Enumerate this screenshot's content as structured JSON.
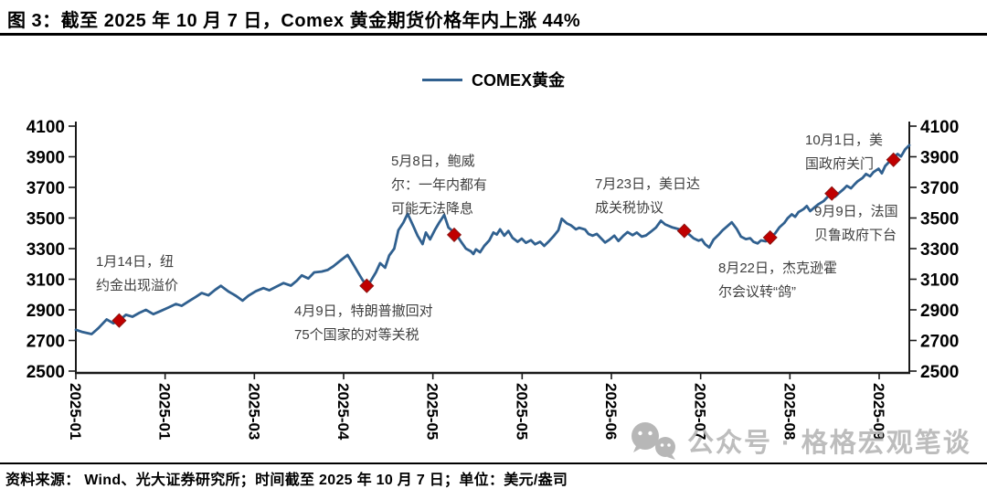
{
  "title": "图 3：截至 2025 年 10 月 7 日，Comex 黄金期货价格年内上涨 44%",
  "legend": {
    "label": "COMEX黄金"
  },
  "footer": {
    "source": "资料来源： Wind、光大证券研究所；时间截至 2025 年 10 月 7 日；单位：美元/盎司"
  },
  "watermark": {
    "text": "公众号 · 格格宏观笔谈"
  },
  "colors": {
    "line": "#30608f",
    "marker": "#c00000",
    "marker_edge": "#8b1512",
    "axis": "#1a1a1a",
    "annotation": "#3f3f3f",
    "watermark": "#b6b6b6"
  },
  "chart_data": {
    "type": "line",
    "title": "COMEX黄金",
    "xlabel": "",
    "ylabel": "美元/盎司",
    "ylim": [
      2500,
      4100
    ],
    "grid": false,
    "legend_position": "top",
    "y_ticks": [
      2500,
      2700,
      2900,
      3100,
      3300,
      3500,
      3700,
      3900,
      4100
    ],
    "x_tick_labels": [
      "2025-01",
      "2025-01",
      "2025-03",
      "2025-04",
      "2025-05",
      "2025-05",
      "2025-06",
      "2025-07",
      "2025-08",
      "2025-09"
    ],
    "series": [
      {
        "name": "COMEX黄金",
        "points": [
          [
            0,
            2770
          ],
          [
            0.008,
            2755
          ],
          [
            0.019,
            2742
          ],
          [
            0.027,
            2780
          ],
          [
            0.037,
            2838
          ],
          [
            0.045,
            2812
          ],
          [
            0.052,
            2830
          ],
          [
            0.06,
            2868
          ],
          [
            0.068,
            2855
          ],
          [
            0.076,
            2880
          ],
          [
            0.084,
            2900
          ],
          [
            0.093,
            2872
          ],
          [
            0.102,
            2893
          ],
          [
            0.111,
            2915
          ],
          [
            0.12,
            2938
          ],
          [
            0.127,
            2926
          ],
          [
            0.136,
            2958
          ],
          [
            0.144,
            2985
          ],
          [
            0.151,
            3010
          ],
          [
            0.159,
            2995
          ],
          [
            0.167,
            3030
          ],
          [
            0.174,
            3057
          ],
          [
            0.183,
            3020
          ],
          [
            0.192,
            2992
          ],
          [
            0.2,
            2960
          ],
          [
            0.207,
            2992
          ],
          [
            0.216,
            3022
          ],
          [
            0.225,
            3042
          ],
          [
            0.232,
            3028
          ],
          [
            0.24,
            3050
          ],
          [
            0.249,
            3075
          ],
          [
            0.258,
            3058
          ],
          [
            0.265,
            3090
          ],
          [
            0.271,
            3125
          ],
          [
            0.279,
            3105
          ],
          [
            0.286,
            3145
          ],
          [
            0.295,
            3150
          ],
          [
            0.302,
            3160
          ],
          [
            0.309,
            3185
          ],
          [
            0.317,
            3220
          ],
          [
            0.326,
            3258
          ],
          [
            0.332,
            3205
          ],
          [
            0.339,
            3140
          ],
          [
            0.344,
            3095
          ],
          [
            0.349,
            3057
          ],
          [
            0.354,
            3090
          ],
          [
            0.36,
            3145
          ],
          [
            0.365,
            3205
          ],
          [
            0.371,
            3175
          ],
          [
            0.376,
            3255
          ],
          [
            0.382,
            3300
          ],
          [
            0.387,
            3420
          ],
          [
            0.393,
            3470
          ],
          [
            0.398,
            3528
          ],
          [
            0.405,
            3445
          ],
          [
            0.41,
            3385
          ],
          [
            0.416,
            3330
          ],
          [
            0.42,
            3405
          ],
          [
            0.425,
            3360
          ],
          [
            0.431,
            3425
          ],
          [
            0.436,
            3470
          ],
          [
            0.442,
            3520
          ],
          [
            0.447,
            3438
          ],
          [
            0.453,
            3410
          ],
          [
            0.457,
            3388
          ],
          [
            0.463,
            3338
          ],
          [
            0.468,
            3300
          ],
          [
            0.474,
            3282
          ],
          [
            0.477,
            3265
          ],
          [
            0.48,
            3295
          ],
          [
            0.485,
            3276
          ],
          [
            0.49,
            3318
          ],
          [
            0.496,
            3354
          ],
          [
            0.501,
            3405
          ],
          [
            0.505,
            3392
          ],
          [
            0.509,
            3426
          ],
          [
            0.514,
            3385
          ],
          [
            0.519,
            3415
          ],
          [
            0.524,
            3370
          ],
          [
            0.53,
            3345
          ],
          [
            0.535,
            3365
          ],
          [
            0.54,
            3338
          ],
          [
            0.546,
            3355
          ],
          [
            0.551,
            3328
          ],
          [
            0.557,
            3345
          ],
          [
            0.562,
            3318
          ],
          [
            0.568,
            3350
          ],
          [
            0.573,
            3380
          ],
          [
            0.579,
            3420
          ],
          [
            0.583,
            3495
          ],
          [
            0.589,
            3465
          ],
          [
            0.594,
            3452
          ],
          [
            0.6,
            3426
          ],
          [
            0.604,
            3436
          ],
          [
            0.611,
            3425
          ],
          [
            0.615,
            3396
          ],
          [
            0.62,
            3385
          ],
          [
            0.625,
            3396
          ],
          [
            0.63,
            3368
          ],
          [
            0.635,
            3340
          ],
          [
            0.64,
            3358
          ],
          [
            0.646,
            3385
          ],
          [
            0.651,
            3350
          ],
          [
            0.657,
            3385
          ],
          [
            0.662,
            3408
          ],
          [
            0.668,
            3388
          ],
          [
            0.673,
            3405
          ],
          [
            0.679,
            3378
          ],
          [
            0.684,
            3386
          ],
          [
            0.691,
            3415
          ],
          [
            0.696,
            3438
          ],
          [
            0.702,
            3482
          ],
          [
            0.707,
            3458
          ],
          [
            0.715,
            3440
          ],
          [
            0.723,
            3428
          ],
          [
            0.73,
            3416
          ],
          [
            0.736,
            3392
          ],
          [
            0.741,
            3368
          ],
          [
            0.747,
            3352
          ],
          [
            0.751,
            3360
          ],
          [
            0.755,
            3328
          ],
          [
            0.76,
            3308
          ],
          [
            0.765,
            3358
          ],
          [
            0.771,
            3390
          ],
          [
            0.776,
            3420
          ],
          [
            0.782,
            3448
          ],
          [
            0.787,
            3472
          ],
          [
            0.793,
            3428
          ],
          [
            0.798,
            3378
          ],
          [
            0.804,
            3362
          ],
          [
            0.809,
            3368
          ],
          [
            0.813,
            3344
          ],
          [
            0.818,
            3334
          ],
          [
            0.822,
            3354
          ],
          [
            0.828,
            3348
          ],
          [
            0.833,
            3372
          ],
          [
            0.839,
            3400
          ],
          [
            0.844,
            3438
          ],
          [
            0.85,
            3468
          ],
          [
            0.854,
            3498
          ],
          [
            0.859,
            3524
          ],
          [
            0.863,
            3508
          ],
          [
            0.867,
            3538
          ],
          [
            0.873,
            3558
          ],
          [
            0.877,
            3578
          ],
          [
            0.881,
            3545
          ],
          [
            0.886,
            3568
          ],
          [
            0.891,
            3590
          ],
          [
            0.897,
            3610
          ],
          [
            0.902,
            3638
          ],
          [
            0.907,
            3660
          ],
          [
            0.911,
            3640
          ],
          [
            0.916,
            3665
          ],
          [
            0.921,
            3688
          ],
          [
            0.925,
            3710
          ],
          [
            0.93,
            3694
          ],
          [
            0.934,
            3718
          ],
          [
            0.938,
            3740
          ],
          [
            0.944,
            3762
          ],
          [
            0.948,
            3788
          ],
          [
            0.953,
            3772
          ],
          [
            0.957,
            3800
          ],
          [
            0.963,
            3822
          ],
          [
            0.967,
            3792
          ],
          [
            0.971,
            3840
          ],
          [
            0.976,
            3868
          ],
          [
            0.981,
            3895
          ],
          [
            0.986,
            3918
          ],
          [
            0.99,
            3902
          ],
          [
            0.995,
            3948
          ],
          [
            1,
            3975
          ]
        ]
      }
    ],
    "annotations": [
      {
        "t": 0.052,
        "v": 2830,
        "text": "1月14日，纽\n约金出现溢价"
      },
      {
        "t": 0.349,
        "v": 3057,
        "text": "4月9日，特朗普撤回对\n75个国家的对等关税"
      },
      {
        "t": 0.454,
        "v": 3390,
        "text": "5月8日，鲍威\n尔：一年内都有\n可能无法降息"
      },
      {
        "t": 0.73,
        "v": 3416,
        "text": "7月23日，美日达\n成关税协议"
      },
      {
        "t": 0.833,
        "v": 3372,
        "text": "8月22日，杰克逊霍\n尔会议转“鸽”"
      },
      {
        "t": 0.907,
        "v": 3660,
        "text": "9月9日，法国\n贝鲁政府下台"
      },
      {
        "t": 0.981,
        "v": 3880,
        "text": "10月1日，美\n国政府关门"
      }
    ]
  }
}
